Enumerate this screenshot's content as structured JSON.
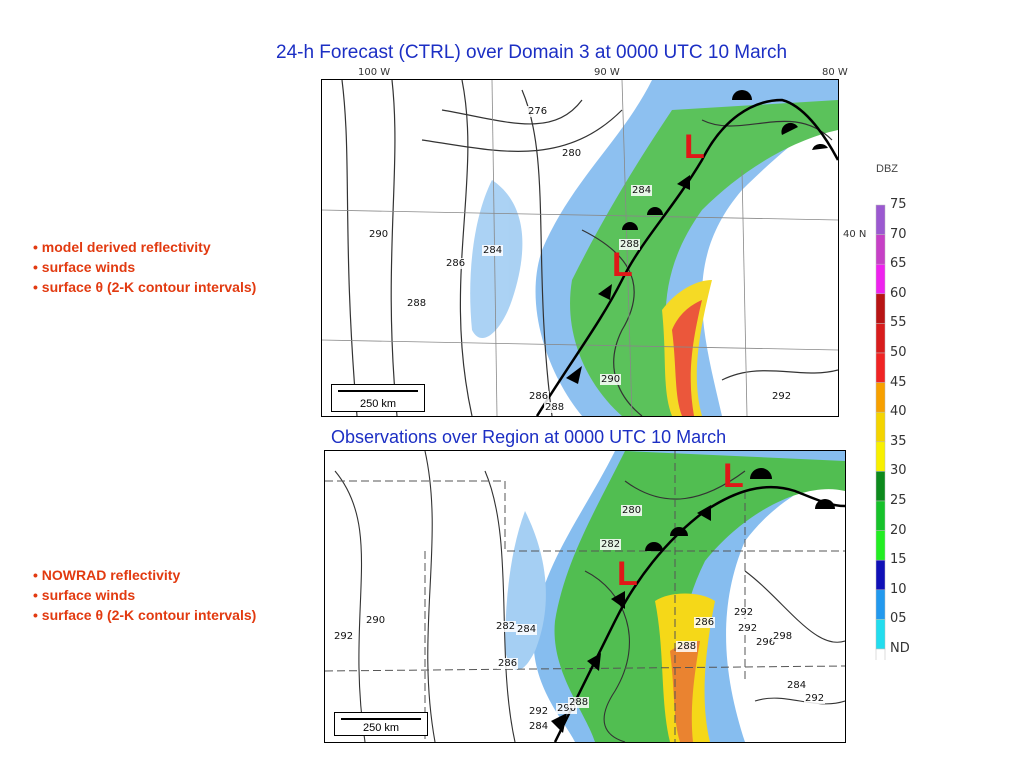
{
  "titles": {
    "forecast": "24-h Forecast (CTRL) over Domain 3 at 0000 UTC 10 March",
    "observations": "Observations over Region at 0000 UTC 10 March"
  },
  "forecast_bullets": [
    "• model derived reflectivity",
    "• surface winds",
    "• surface θ (2-K contour intervals)"
  ],
  "obs_bullets": [
    "• NOWRAD reflectivity",
    "• surface winds",
    "• surface θ (2-K contour intervals)"
  ],
  "lon_labels": [
    "100 W",
    "90 W",
    "80 W"
  ],
  "lat_label": "40 N",
  "scalebar_label": "250 km",
  "low_symbol": "L",
  "forecast_contours": [
    "276",
    "280",
    "284",
    "288",
    "290",
    "286",
    "284",
    "288",
    "290",
    "292",
    "286",
    "288"
  ],
  "obs_contours": [
    "280",
    "282",
    "292",
    "290",
    "282",
    "284",
    "286",
    "286",
    "288",
    "292",
    "290",
    "284",
    "288",
    "292",
    "296",
    "298",
    "284",
    "292",
    "292"
  ],
  "colorbar": {
    "title": "DBZ",
    "labels": [
      "75",
      "70",
      "65",
      "60",
      "55",
      "50",
      "45",
      "40",
      "35",
      "30",
      "25",
      "20",
      "15",
      "10",
      "05",
      "ND"
    ],
    "colors": [
      "#9b59d0",
      "#c640c6",
      "#ee22ee",
      "#b81414",
      "#d81c1c",
      "#f02424",
      "#f7a000",
      "#f4d400",
      "#f8f000",
      "#0c8a1c",
      "#16c22a",
      "#22ee22",
      "#1010b8",
      "#2299ee",
      "#22ddee",
      "#ffffff"
    ]
  }
}
